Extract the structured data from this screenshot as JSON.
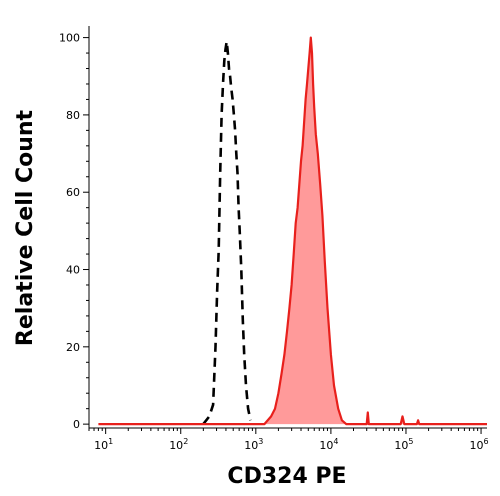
{
  "chart_data": {
    "type": "area",
    "title": "",
    "xlabel": "CD324 PE",
    "ylabel": "Relative Cell Count",
    "xscale": "log",
    "xlim": [
      6,
      1200000
    ],
    "ylim": [
      -1,
      103
    ],
    "grid": false,
    "y_ticks": [
      0,
      20,
      40,
      60,
      80,
      100
    ],
    "x_ticks": [
      {
        "value": 10,
        "base": "10",
        "exp": "1"
      },
      {
        "value": 100,
        "base": "10",
        "exp": "2"
      },
      {
        "value": 1000,
        "base": "10",
        "exp": "3"
      },
      {
        "value": 10000,
        "base": "10",
        "exp": "4"
      },
      {
        "value": 100000,
        "base": "10",
        "exp": "5"
      },
      {
        "value": 1000000,
        "base": "10",
        "exp": "6"
      }
    ],
    "series": [
      {
        "style": "dashed",
        "color": "#000000",
        "fill": "none",
        "points": [
          [
            200,
            0
          ],
          [
            240,
            2
          ],
          [
            270,
            5
          ],
          [
            290,
            20
          ],
          [
            305,
            34
          ],
          [
            320,
            45
          ],
          [
            335,
            65
          ],
          [
            350,
            80
          ],
          [
            365,
            88
          ],
          [
            380,
            94
          ],
          [
            395,
            97
          ],
          [
            410,
            99
          ],
          [
            425,
            96
          ],
          [
            440,
            92
          ],
          [
            455,
            90
          ],
          [
            470,
            87
          ],
          [
            490,
            84
          ],
          [
            510,
            80
          ],
          [
            530,
            76
          ],
          [
            550,
            70
          ],
          [
            570,
            65
          ],
          [
            590,
            56
          ],
          [
            610,
            50
          ],
          [
            640,
            40
          ],
          [
            670,
            27
          ],
          [
            700,
            18
          ],
          [
            740,
            10
          ],
          [
            790,
            4
          ],
          [
            850,
            1
          ]
        ]
      },
      {
        "style": "solid",
        "color": "#e8201c",
        "fill": "#ff9a9a",
        "points": [
          [
            8,
            0
          ],
          [
            1000,
            0
          ],
          [
            1300,
            0
          ],
          [
            1600,
            2
          ],
          [
            1800,
            4
          ],
          [
            2000,
            8
          ],
          [
            2200,
            13
          ],
          [
            2400,
            18
          ],
          [
            2600,
            24
          ],
          [
            2800,
            30
          ],
          [
            3000,
            36
          ],
          [
            3200,
            44
          ],
          [
            3400,
            52
          ],
          [
            3600,
            56
          ],
          [
            3800,
            62
          ],
          [
            4000,
            68
          ],
          [
            4200,
            72
          ],
          [
            4400,
            78
          ],
          [
            4600,
            84
          ],
          [
            4800,
            88
          ],
          [
            5000,
            92
          ],
          [
            5200,
            96
          ],
          [
            5400,
            100
          ],
          [
            5600,
            96
          ],
          [
            5800,
            88
          ],
          [
            6000,
            82
          ],
          [
            6300,
            75
          ],
          [
            6700,
            70
          ],
          [
            7200,
            62
          ],
          [
            7700,
            54
          ],
          [
            8300,
            42
          ],
          [
            9000,
            30
          ],
          [
            10000,
            18
          ],
          [
            11000,
            10
          ],
          [
            12500,
            4
          ],
          [
            14000,
            1
          ],
          [
            16000,
            0
          ],
          [
            30000,
            0
          ],
          [
            31000,
            3
          ],
          [
            32000,
            0
          ],
          [
            85000,
            0
          ],
          [
            90000,
            2
          ],
          [
            95000,
            0
          ],
          [
            140000,
            0
          ],
          [
            145000,
            1
          ],
          [
            150000,
            0
          ],
          [
            1200000,
            0
          ]
        ]
      }
    ]
  }
}
